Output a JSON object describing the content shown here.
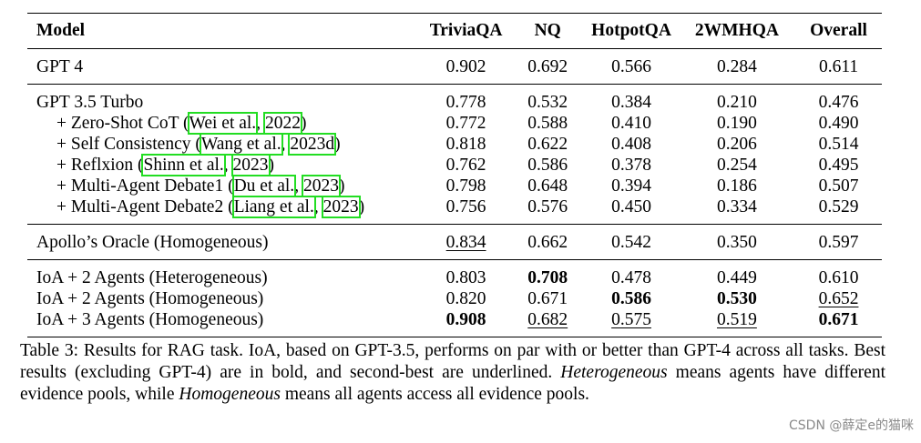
{
  "table": {
    "headers": [
      "Model",
      "TriviaQA",
      "NQ",
      "HotpotQA",
      "2WMHQA",
      "Overall"
    ],
    "rows": {
      "gpt4": {
        "label": "GPT 4",
        "values": [
          "0.902",
          "0.692",
          "0.566",
          "0.284",
          "0.611"
        ]
      },
      "gpt35": {
        "label": "GPT 3.5 Turbo",
        "values": [
          "0.778",
          "0.532",
          "0.384",
          "0.210",
          "0.476"
        ]
      },
      "zeroshot": {
        "prefix": "+ Zero-Shot CoT (",
        "cite1": "Wei et al.",
        "sep": ", ",
        "cite2": "2022",
        "suffix": ")",
        "values": [
          "0.772",
          "0.588",
          "0.410",
          "0.190",
          "0.490"
        ]
      },
      "selfcons": {
        "prefix": "+ Self Consistency (",
        "cite1": "Wang et al.",
        "sep": ", ",
        "cite2": "2023d",
        "suffix": ")",
        "values": [
          "0.818",
          "0.622",
          "0.408",
          "0.206",
          "0.514"
        ]
      },
      "reflxion": {
        "prefix": "+ Reflxion (",
        "cite1": "Shinn et al.",
        "sep": ", ",
        "cite2": "2023",
        "suffix": ")",
        "values": [
          "0.762",
          "0.586",
          "0.378",
          "0.254",
          "0.495"
        ]
      },
      "mad1": {
        "prefix": "+ Multi-Agent Debate1 (",
        "cite1": "Du et al.",
        "sep": ", ",
        "cite2": "2023",
        "suffix": ")",
        "values": [
          "0.798",
          "0.648",
          "0.394",
          "0.186",
          "0.507"
        ]
      },
      "mad2": {
        "prefix": "+ Multi-Agent Debate2 (",
        "cite1": "Liang et al.",
        "sep": ", ",
        "cite2": "2023",
        "suffix": ")",
        "values": [
          "0.756",
          "0.576",
          "0.450",
          "0.334",
          "0.529"
        ]
      },
      "apollo": {
        "label": "Apollo’s Oracle (Homogeneous)",
        "values": [
          "0.834",
          "0.662",
          "0.542",
          "0.350",
          "0.597"
        ]
      },
      "ioa2het": {
        "label": "IoA + 2 Agents (Heterogeneous)",
        "values": [
          "0.803",
          "0.708",
          "0.478",
          "0.449",
          "0.610"
        ]
      },
      "ioa2hom": {
        "label": "IoA + 2 Agents (Homogeneous)",
        "values": [
          "0.820",
          "0.671",
          "0.586",
          "0.530",
          "0.652"
        ]
      },
      "ioa3hom": {
        "label": "IoA + 3 Agents (Homogeneous)",
        "values": [
          "0.908",
          "0.682",
          "0.575",
          "0.519",
          "0.671"
        ]
      }
    }
  },
  "caption": {
    "part1": "Table 3: Results for RAG task. IoA, based on GPT-3.5, performs on par with or better than GPT-4 across all tasks. Best results (excluding GPT-4) are in bold, and second-best are underlined. ",
    "term1": "Heterogeneous",
    "part2": " means agents have different evidence pools, while ",
    "term2": "Homogeneous",
    "part3": " means all agents access all evidence pools."
  },
  "watermark": "CSDN @薛定e的猫咪"
}
